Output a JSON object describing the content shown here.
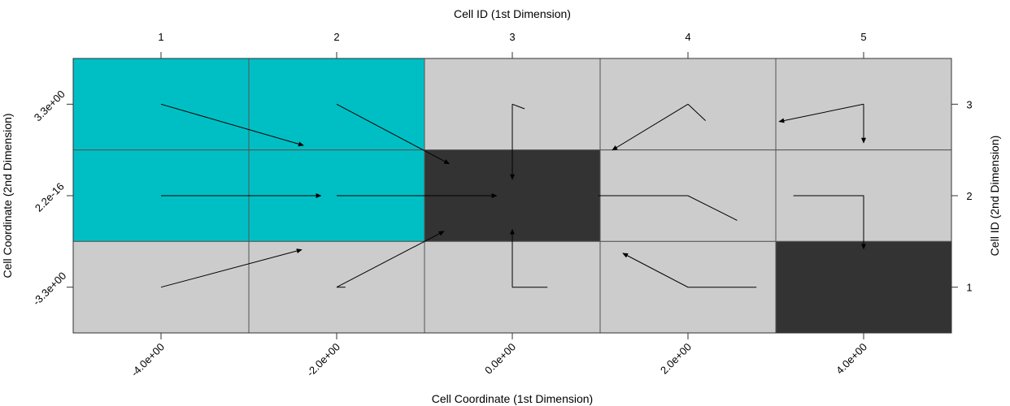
{
  "chart_data": {
    "type": "grid-vector",
    "top_axis_title": "Cell ID (1st Dimension)",
    "bottom_axis_title": "Cell Coordinate (1st Dimension)",
    "left_axis_title": "Cell Coordinate (2nd Dimension)",
    "right_axis_title": "Cell ID (2nd Dimension)",
    "top_ticks": [
      "1",
      "2",
      "3",
      "4",
      "5"
    ],
    "right_ticks": [
      "1",
      "2",
      "3"
    ],
    "bottom_ticks": [
      "-4.0e+00",
      "-2.0e+00",
      "0.0e+00",
      "2.0e+00",
      "4.0e+00"
    ],
    "left_ticks": [
      "-3.3e+00",
      "2.2e-16",
      "3.3e+00"
    ],
    "colors": {
      "cyan": "#00BFC4",
      "dark": "#333333",
      "light": "#CCCCCC"
    },
    "cells": [
      {
        "row": 3,
        "col": 1,
        "fill": "cyan"
      },
      {
        "row": 3,
        "col": 2,
        "fill": "cyan"
      },
      {
        "row": 3,
        "col": 3,
        "fill": "light"
      },
      {
        "row": 3,
        "col": 4,
        "fill": "light"
      },
      {
        "row": 3,
        "col": 5,
        "fill": "light"
      },
      {
        "row": 2,
        "col": 1,
        "fill": "cyan"
      },
      {
        "row": 2,
        "col": 2,
        "fill": "cyan"
      },
      {
        "row": 2,
        "col": 3,
        "fill": "dark"
      },
      {
        "row": 2,
        "col": 4,
        "fill": "light"
      },
      {
        "row": 2,
        "col": 5,
        "fill": "light"
      },
      {
        "row": 1,
        "col": 1,
        "fill": "light"
      },
      {
        "row": 1,
        "col": 2,
        "fill": "light"
      },
      {
        "row": 1,
        "col": 3,
        "fill": "light"
      },
      {
        "row": 1,
        "col": 4,
        "fill": "light"
      },
      {
        "row": 1,
        "col": 5,
        "fill": "dark"
      }
    ],
    "paths": [
      {
        "points": [
          [
            1,
            3
          ],
          [
            1.81,
            2.55
          ]
        ],
        "arrow": true
      },
      {
        "points": [
          [
            2,
            3
          ],
          [
            2.64,
            2.35
          ]
        ],
        "arrow": true
      },
      {
        "points": [
          [
            3,
            3
          ],
          [
            3.07,
            2.95
          ]
        ],
        "arrow": false
      },
      {
        "points": [
          [
            3,
            3
          ],
          [
            3,
            2.18
          ]
        ],
        "arrow": true
      },
      {
        "points": [
          [
            4,
            3
          ],
          [
            3.57,
            2.5
          ]
        ],
        "arrow": true
      },
      {
        "points": [
          [
            4,
            3
          ],
          [
            4.1,
            2.82
          ]
        ],
        "arrow": false
      },
      {
        "points": [
          [
            5,
            3
          ],
          [
            5,
            2.58
          ]
        ],
        "arrow": true
      },
      {
        "points": [
          [
            5,
            3
          ],
          [
            4.52,
            2.81
          ]
        ],
        "arrow": true
      },
      {
        "points": [
          [
            1,
            2
          ],
          [
            1.91,
            2
          ]
        ],
        "arrow": true
      },
      {
        "points": [
          [
            2,
            2
          ],
          [
            2.91,
            2
          ]
        ],
        "arrow": true
      },
      {
        "points": [
          [
            3,
            1
          ],
          [
            3,
            1.63
          ]
        ],
        "arrow": true
      },
      {
        "points": [
          [
            3,
            1
          ],
          [
            3.2,
            1
          ]
        ],
        "arrow": false
      },
      {
        "points": [
          [
            3.49,
            2
          ],
          [
            4,
            2
          ],
          [
            4.28,
            1.73
          ]
        ],
        "arrow": false
      },
      {
        "points": [
          [
            4.6,
            2
          ],
          [
            5,
            2
          ],
          [
            5,
            1.42
          ]
        ],
        "arrow": true
      },
      {
        "points": [
          [
            1,
            1
          ],
          [
            1.8,
            1.41
          ]
        ],
        "arrow": true
      },
      {
        "points": [
          [
            2,
            1
          ],
          [
            2.61,
            1.61
          ]
        ],
        "arrow": true
      },
      {
        "points": [
          [
            2,
            1
          ],
          [
            2.05,
            1
          ]
        ],
        "arrow": false
      },
      {
        "points": [
          [
            4.39,
            1
          ],
          [
            4,
            1
          ],
          [
            3.63,
            1.37
          ]
        ],
        "arrow": true
      }
    ]
  }
}
